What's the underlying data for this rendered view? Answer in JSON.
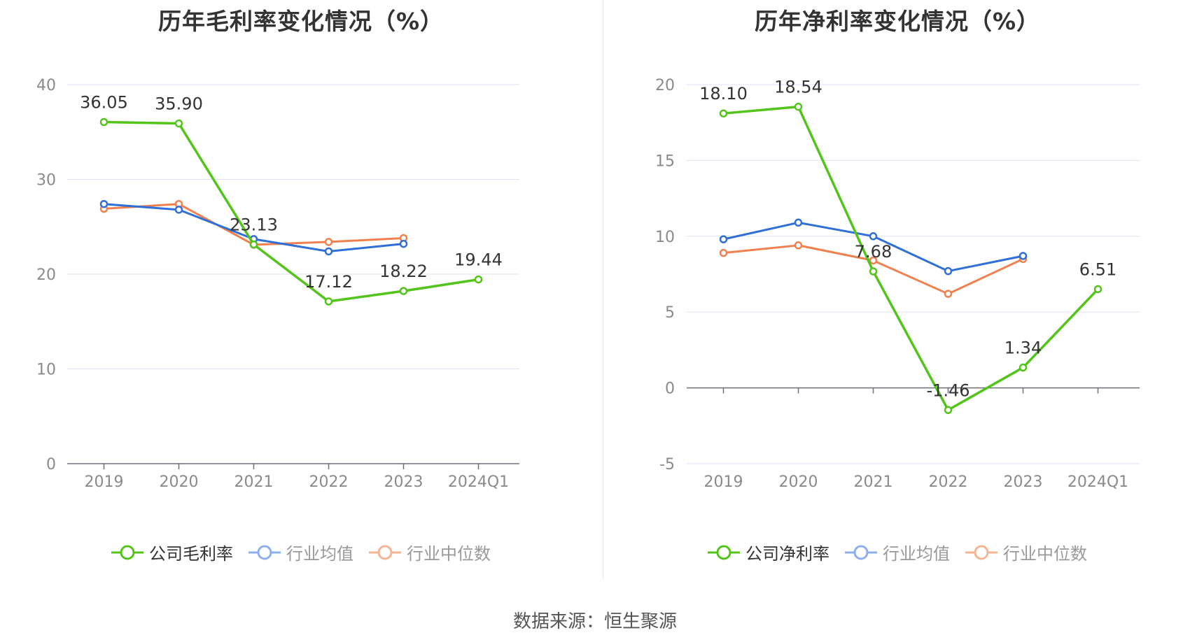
{
  "source_text": "数据来源：恒生聚源",
  "legend_colors": {
    "active": "#52c41a",
    "muted_blue": "#8fb0f0",
    "muted_orange": "#f6b592"
  },
  "chart_data": [
    {
      "type": "line",
      "title": "历年毛利率变化情况（%）",
      "categories": [
        "2019",
        "2020",
        "2021",
        "2022",
        "2023",
        "2024Q1"
      ],
      "ylim": [
        0,
        40
      ],
      "yticks": [
        0,
        10,
        20,
        30,
        40
      ],
      "grid": true,
      "legend_position": "bottom",
      "series": [
        {
          "name": "公司毛利率",
          "color": "#52c41a",
          "values": [
            36.05,
            35.9,
            23.13,
            17.12,
            18.22,
            19.44
          ],
          "labels": [
            "36.05",
            "35.90",
            "23.13",
            "17.12",
            "18.22",
            "19.44"
          ]
        },
        {
          "name": "行业均值",
          "color": "#2f6fd8",
          "values": [
            27.4,
            26.8,
            23.7,
            22.4,
            23.2,
            null
          ]
        },
        {
          "name": "行业中位数",
          "color": "#f0814f",
          "values": [
            26.9,
            27.4,
            23.1,
            23.4,
            23.8,
            null
          ]
        }
      ]
    },
    {
      "type": "line",
      "title": "历年净利率变化情况（%）",
      "categories": [
        "2019",
        "2020",
        "2021",
        "2022",
        "2023",
        "2024Q1"
      ],
      "ylim": [
        -5,
        20
      ],
      "yticks": [
        -5,
        0,
        5,
        10,
        15,
        20
      ],
      "grid": true,
      "legend_position": "bottom",
      "series": [
        {
          "name": "公司净利率",
          "color": "#52c41a",
          "values": [
            18.1,
            18.54,
            7.68,
            -1.46,
            1.34,
            6.51
          ],
          "labels": [
            "18.10",
            "18.54",
            "7.68",
            "-1.46",
            "1.34",
            "6.51"
          ]
        },
        {
          "name": "行业均值",
          "color": "#2f6fd8",
          "values": [
            9.8,
            10.9,
            10.0,
            7.7,
            8.7,
            null
          ]
        },
        {
          "name": "行业中位数",
          "color": "#f0814f",
          "values": [
            8.9,
            9.4,
            8.4,
            6.2,
            8.5,
            null
          ]
        }
      ]
    }
  ]
}
